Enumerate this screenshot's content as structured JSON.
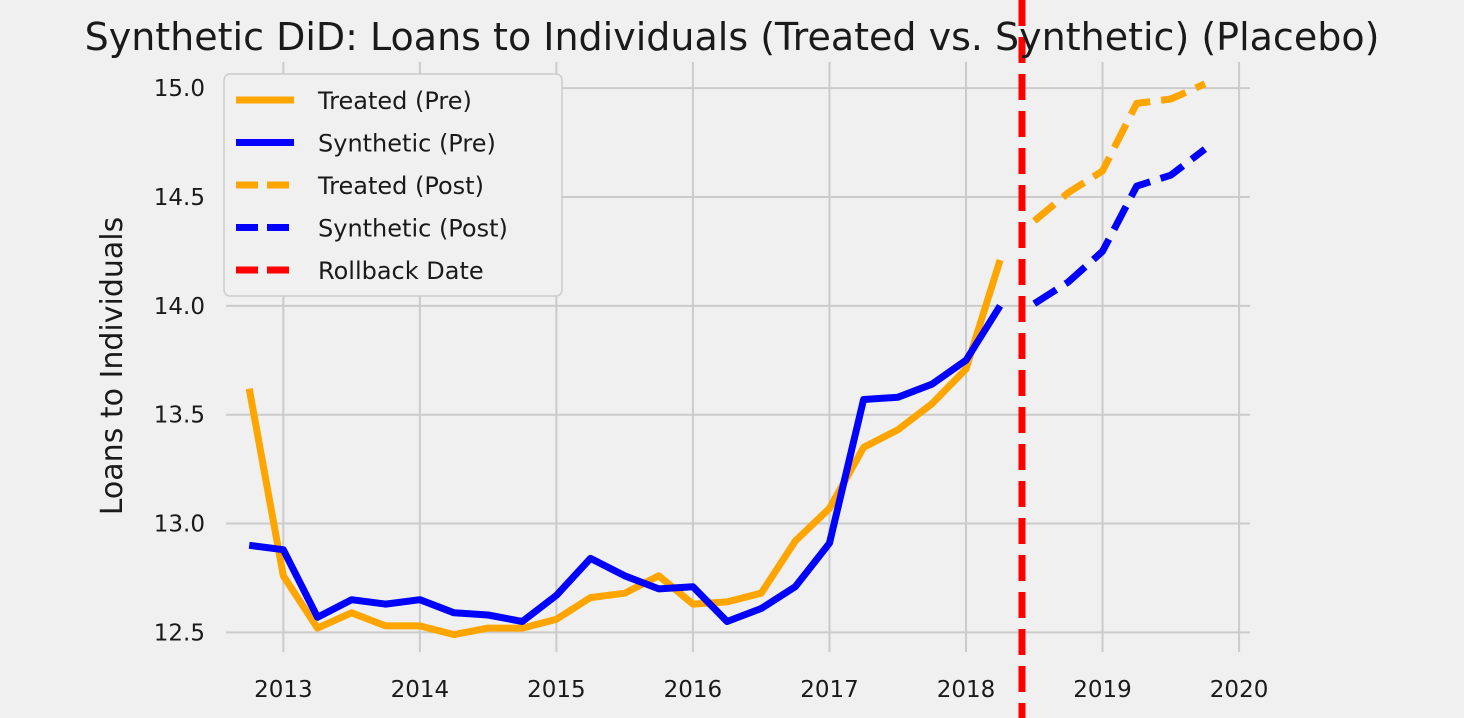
{
  "chart_data": {
    "type": "line",
    "title": "Synthetic DiD: Loans to Individuals (Treated vs. Synthetic) (Placebo)",
    "xlabel": "",
    "ylabel": "Loans to Individuals",
    "xlim": [
      2012.58,
      2020.08
    ],
    "ylim": [
      12.41,
      15.12
    ],
    "x_ticks": [
      2013,
      2014,
      2015,
      2016,
      2017,
      2018,
      2019,
      2020
    ],
    "y_ticks": [
      12.5,
      13.0,
      13.5,
      14.0,
      14.5,
      15.0
    ],
    "y_tick_labels": [
      "12.5",
      "13.0",
      "13.5",
      "14.0",
      "14.5",
      "15.0"
    ],
    "grid": true,
    "legend_position": "top-left",
    "series": [
      {
        "name": "Treated (Pre)",
        "color": "#ffa500",
        "style": "solid",
        "x": [
          2012.75,
          2013.0,
          2013.25,
          2013.5,
          2013.75,
          2014.0,
          2014.25,
          2014.5,
          2014.75,
          2015.0,
          2015.25,
          2015.5,
          2015.75,
          2016.0,
          2016.25,
          2016.5,
          2016.75,
          2017.0,
          2017.25,
          2017.5,
          2017.75,
          2018.0,
          2018.25
        ],
        "values": [
          13.62,
          12.76,
          12.52,
          12.59,
          12.53,
          12.53,
          12.49,
          12.52,
          12.52,
          12.56,
          12.66,
          12.68,
          12.76,
          12.63,
          12.64,
          12.68,
          12.92,
          13.07,
          13.35,
          13.43,
          13.55,
          13.71,
          14.21
        ]
      },
      {
        "name": "Synthetic (Pre)",
        "color": "#0000ff",
        "style": "solid",
        "x": [
          2012.75,
          2013.0,
          2013.25,
          2013.5,
          2013.75,
          2014.0,
          2014.25,
          2014.5,
          2014.75,
          2015.0,
          2015.25,
          2015.5,
          2015.75,
          2016.0,
          2016.25,
          2016.5,
          2016.75,
          2017.0,
          2017.25,
          2017.5,
          2017.75,
          2018.0,
          2018.25
        ],
        "values": [
          12.9,
          12.88,
          12.57,
          12.65,
          12.63,
          12.65,
          12.59,
          12.58,
          12.55,
          12.67,
          12.84,
          12.76,
          12.7,
          12.71,
          12.55,
          12.61,
          12.71,
          12.91,
          13.57,
          13.58,
          13.64,
          13.75,
          14.0
        ]
      },
      {
        "name": "Treated (Post)",
        "color": "#ffa500",
        "style": "dashed",
        "x": [
          2018.5,
          2018.75,
          2019.0,
          2019.25,
          2019.5,
          2019.75
        ],
        "values": [
          14.39,
          14.52,
          14.62,
          14.93,
          14.95,
          15.02
        ]
      },
      {
        "name": "Synthetic (Post)",
        "color": "#0000ff",
        "style": "dashed",
        "x": [
          2018.5,
          2018.75,
          2019.0,
          2019.25,
          2019.5,
          2019.75
        ],
        "values": [
          14.01,
          14.11,
          14.25,
          14.55,
          14.6,
          14.72
        ]
      }
    ],
    "vline": {
      "name": "Rollback Date",
      "x": 2018.41,
      "color": "#ff0000",
      "style": "dashed"
    }
  }
}
